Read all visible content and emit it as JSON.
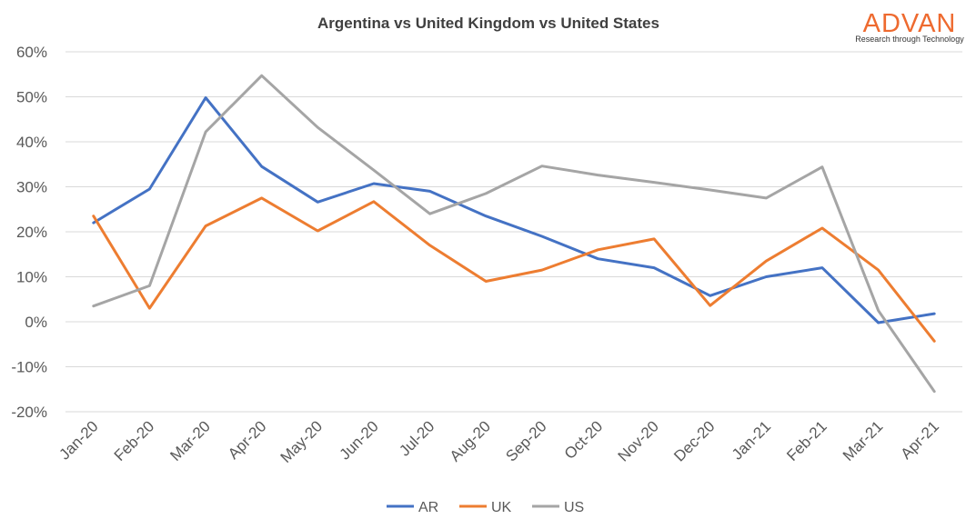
{
  "logo": {
    "name": "ADVAN",
    "tagline": "Research through Technology",
    "color": "#ee6a2f"
  },
  "chart_data": {
    "type": "line",
    "title": "Argentina vs United Kingdom vs United States",
    "xlabel": "",
    "ylabel": "",
    "categories": [
      "Jan-20",
      "Feb-20",
      "Mar-20",
      "Apr-20",
      "May-20",
      "Jun-20",
      "Jul-20",
      "Aug-20",
      "Sep-20",
      "Oct-20",
      "Nov-20",
      "Dec-20",
      "Jan-21",
      "Feb-21",
      "Mar-21",
      "Apr-21"
    ],
    "y_ticks": [
      "60%",
      "50%",
      "40%",
      "30%",
      "20%",
      "10%",
      "0%",
      "-10%",
      "-20%"
    ],
    "ylim": [
      -20,
      60
    ],
    "grid": true,
    "legend_position": "bottom",
    "series": [
      {
        "name": "AR",
        "color": "#4472c4",
        "values": [
          22,
          29.5,
          49.8,
          34.5,
          26.6,
          30.7,
          29.0,
          23.5,
          19.0,
          14.0,
          12.0,
          5.8,
          10.0,
          12.0,
          -0.2,
          1.8
        ]
      },
      {
        "name": "UK",
        "color": "#ed7d31",
        "values": [
          23.5,
          3.0,
          21.3,
          27.5,
          20.2,
          26.7,
          17.0,
          9.0,
          11.5,
          16.0,
          18.4,
          3.6,
          13.5,
          20.8,
          11.5,
          -4.3
        ]
      },
      {
        "name": "US",
        "color": "#a5a5a5",
        "values": [
          3.5,
          8.0,
          42.2,
          54.7,
          43.2,
          33.7,
          24.0,
          28.5,
          34.6,
          32.6,
          31.0,
          29.3,
          27.5,
          34.4,
          2.5,
          -15.5
        ]
      }
    ]
  }
}
